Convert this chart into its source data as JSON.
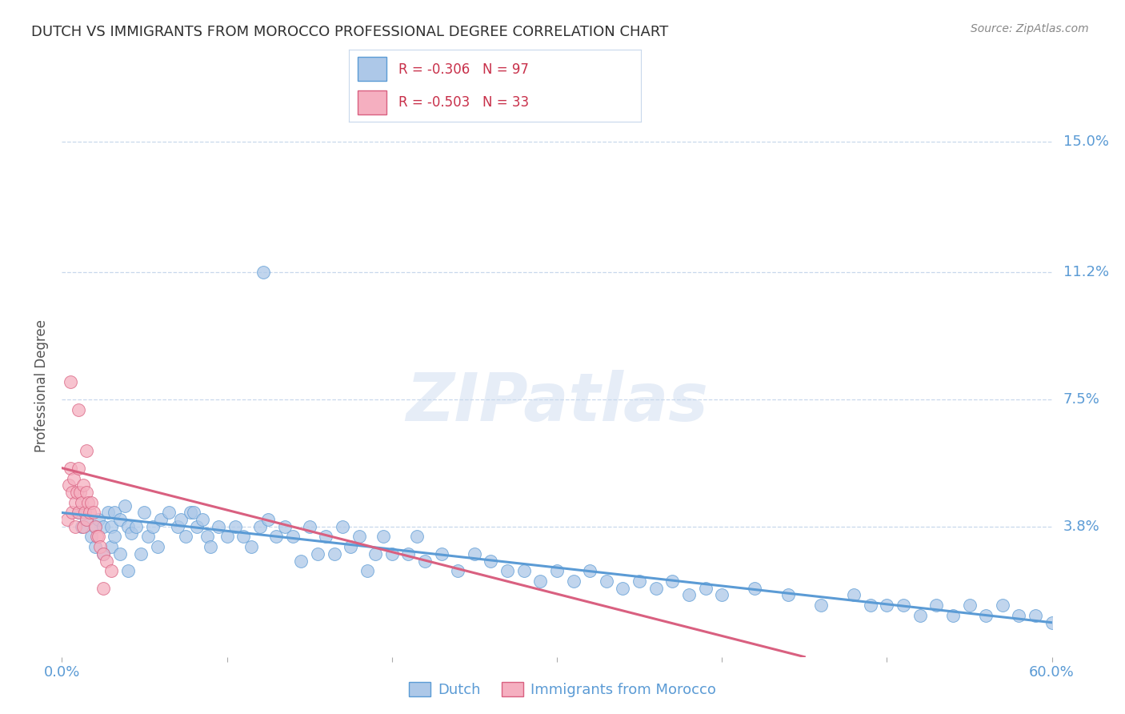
{
  "title": "DUTCH VS IMMIGRANTS FROM MOROCCO PROFESSIONAL DEGREE CORRELATION CHART",
  "source": "Source: ZipAtlas.com",
  "ylabel": "Professional Degree",
  "watermark": "ZIPatlas",
  "xlim": [
    0.0,
    0.6
  ],
  "ylim": [
    0.0,
    0.158
  ],
  "xticks": [
    0.0,
    0.1,
    0.2,
    0.3,
    0.4,
    0.5,
    0.6
  ],
  "xtick_labels": [
    "0.0%",
    "",
    "",
    "",
    "",
    "",
    "60.0%"
  ],
  "ytick_labels_right": [
    "15.0%",
    "11.2%",
    "7.5%",
    "3.8%"
  ],
  "ytick_vals_right": [
    0.15,
    0.112,
    0.075,
    0.038
  ],
  "dutch_color": "#adc8e8",
  "morocco_color": "#f5afc0",
  "dutch_line_color": "#5b9bd5",
  "morocco_line_color": "#d96080",
  "dutch_R": -0.306,
  "dutch_N": 97,
  "morocco_R": -0.503,
  "morocco_N": 33,
  "legend_R_color": "#c8304a",
  "legend_label_dutch": "Dutch",
  "legend_label_morocco": "Immigrants from Morocco",
  "grid_color": "#c8d8ec",
  "background_color": "#ffffff",
  "title_color": "#303030",
  "axis_label_color": "#5b9bd5",
  "dutch_x": [
    0.01,
    0.012,
    0.015,
    0.018,
    0.02,
    0.02,
    0.022,
    0.025,
    0.025,
    0.028,
    0.03,
    0.03,
    0.032,
    0.032,
    0.035,
    0.035,
    0.038,
    0.04,
    0.04,
    0.042,
    0.045,
    0.048,
    0.05,
    0.052,
    0.055,
    0.058,
    0.06,
    0.065,
    0.07,
    0.072,
    0.075,
    0.078,
    0.08,
    0.082,
    0.085,
    0.088,
    0.09,
    0.095,
    0.1,
    0.105,
    0.11,
    0.115,
    0.12,
    0.125,
    0.13,
    0.135,
    0.14,
    0.145,
    0.15,
    0.155,
    0.16,
    0.165,
    0.17,
    0.175,
    0.18,
    0.185,
    0.19,
    0.195,
    0.2,
    0.21,
    0.215,
    0.22,
    0.23,
    0.24,
    0.25,
    0.26,
    0.27,
    0.28,
    0.29,
    0.3,
    0.31,
    0.32,
    0.33,
    0.34,
    0.35,
    0.36,
    0.37,
    0.38,
    0.39,
    0.4,
    0.42,
    0.44,
    0.46,
    0.48,
    0.49,
    0.5,
    0.51,
    0.52,
    0.53,
    0.54,
    0.55,
    0.56,
    0.57,
    0.58,
    0.59,
    0.6,
    0.122
  ],
  "dutch_y": [
    0.042,
    0.038,
    0.04,
    0.035,
    0.038,
    0.032,
    0.04,
    0.038,
    0.03,
    0.042,
    0.038,
    0.032,
    0.042,
    0.035,
    0.04,
    0.03,
    0.044,
    0.038,
    0.025,
    0.036,
    0.038,
    0.03,
    0.042,
    0.035,
    0.038,
    0.032,
    0.04,
    0.042,
    0.038,
    0.04,
    0.035,
    0.042,
    0.042,
    0.038,
    0.04,
    0.035,
    0.032,
    0.038,
    0.035,
    0.038,
    0.035,
    0.032,
    0.038,
    0.04,
    0.035,
    0.038,
    0.035,
    0.028,
    0.038,
    0.03,
    0.035,
    0.03,
    0.038,
    0.032,
    0.035,
    0.025,
    0.03,
    0.035,
    0.03,
    0.03,
    0.035,
    0.028,
    0.03,
    0.025,
    0.03,
    0.028,
    0.025,
    0.025,
    0.022,
    0.025,
    0.022,
    0.025,
    0.022,
    0.02,
    0.022,
    0.02,
    0.022,
    0.018,
    0.02,
    0.018,
    0.02,
    0.018,
    0.015,
    0.018,
    0.015,
    0.015,
    0.015,
    0.012,
    0.015,
    0.012,
    0.015,
    0.012,
    0.015,
    0.012,
    0.012,
    0.01,
    0.112
  ],
  "morocco_x": [
    0.003,
    0.004,
    0.005,
    0.006,
    0.006,
    0.007,
    0.008,
    0.008,
    0.009,
    0.01,
    0.01,
    0.011,
    0.012,
    0.013,
    0.013,
    0.014,
    0.015,
    0.015,
    0.016,
    0.017,
    0.018,
    0.019,
    0.02,
    0.021,
    0.022,
    0.023,
    0.025,
    0.027,
    0.03,
    0.005,
    0.01,
    0.015,
    0.025
  ],
  "morocco_y": [
    0.04,
    0.05,
    0.055,
    0.048,
    0.042,
    0.052,
    0.045,
    0.038,
    0.048,
    0.055,
    0.042,
    0.048,
    0.045,
    0.05,
    0.038,
    0.042,
    0.048,
    0.04,
    0.045,
    0.042,
    0.045,
    0.042,
    0.038,
    0.035,
    0.035,
    0.032,
    0.03,
    0.028,
    0.025,
    0.08,
    0.072,
    0.06,
    0.02
  ],
  "dutch_line_x": [
    0.0,
    0.6
  ],
  "dutch_line_y": [
    0.042,
    0.01
  ],
  "morocco_line_x": [
    0.0,
    0.45
  ],
  "morocco_line_y": [
    0.055,
    0.0
  ]
}
